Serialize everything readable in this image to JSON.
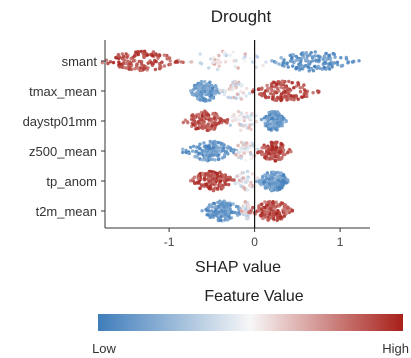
{
  "chart_data": {
    "type": "scatter",
    "subtype": "beeswarm",
    "title": "Drought",
    "xlabel": "SHAP value",
    "xlim": [
      -1.75,
      1.35
    ],
    "xticks": [
      -1,
      0,
      1
    ],
    "xtick_labels": [
      "-1",
      "0",
      "1"
    ],
    "grid": false,
    "vline_at": 0,
    "features": [
      {
        "name": "smant",
        "low_shap": [
          0.2,
          1.15
        ],
        "high_shap": [
          -1.75,
          -0.9
        ],
        "mid_shap": [
          -0.9,
          0.2
        ]
      },
      {
        "name": "tmax_mean",
        "low_shap": [
          -0.75,
          -0.4
        ],
        "high_shap": [
          0.0,
          0.7
        ],
        "mid_shap": [
          -0.4,
          0.0
        ]
      },
      {
        "name": "daystp01mm",
        "low_shap": [
          0.1,
          0.35
        ],
        "high_shap": [
          -0.8,
          -0.35
        ],
        "mid_shap": [
          -0.35,
          0.1
        ]
      },
      {
        "name": "z500_mean",
        "low_shap": [
          -0.8,
          -0.25
        ],
        "high_shap": [
          0.05,
          0.4
        ],
        "mid_shap": [
          -0.25,
          0.05
        ]
      },
      {
        "name": "tp_anom",
        "low_shap": [
          0.05,
          0.4
        ],
        "high_shap": [
          -0.75,
          -0.25
        ],
        "mid_shap": [
          -0.25,
          0.05
        ]
      },
      {
        "name": "t2m_mean",
        "low_shap": [
          -0.6,
          -0.15
        ],
        "high_shap": [
          -0.05,
          0.45
        ],
        "mid_shap": [
          -0.15,
          -0.05
        ]
      }
    ],
    "colorbar": {
      "title": "Feature Value",
      "low_label": "Low",
      "high_label": "High",
      "low_color": "#3f7dbb",
      "mid_color": "#f7f7f7",
      "high_color": "#a8201a"
    }
  }
}
